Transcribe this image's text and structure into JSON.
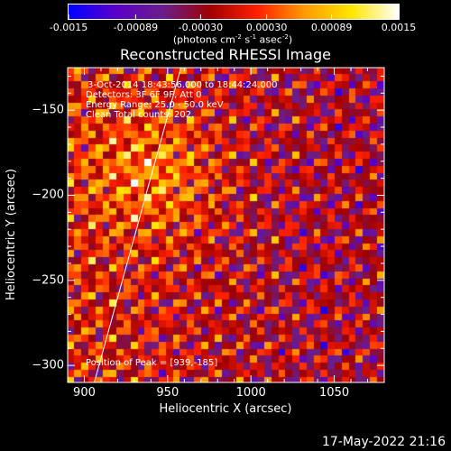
{
  "colorbar": {
    "tick_labels": [
      "-0.0015",
      "-0.00089",
      "-0.00030",
      "0.00030",
      "0.00089",
      "0.0015"
    ],
    "unit_main": "(photons cm",
    "unit_sup1": "-2",
    "unit_mid1": " s",
    "unit_sup2": "-1",
    "unit_mid2": " asec",
    "unit_sup3": "-2",
    "unit_end": ")",
    "range": [
      -0.0015,
      0.0015
    ],
    "colormap": [
      "#0000ff",
      "#5a00c8",
      "#6a1e8c",
      "#a00000",
      "#ff2000",
      "#ff9a00",
      "#ffe600",
      "#ffffff"
    ]
  },
  "annotations": {
    "time": "3-Oct-2014 18:43:56.000 to 18:44:24.000",
    "detectors": "Detectors: 3F 6F 9F, Att 0",
    "energy": "Energy Range: 25.0 - 50.0 keV",
    "clean": "Clean    Total counts: 202.",
    "peak": "Position of Peak = [939,-185]"
  },
  "footer": "17-May-2022 21:16",
  "chart_data": {
    "type": "heatmap",
    "title": "Reconstructed RHESSI Image",
    "xlabel": "Heliocentric X (arcsec)",
    "ylabel": "Heliocentric Y (arcsec)",
    "xlim": [
      890,
      1080
    ],
    "ylim": [
      -310,
      -125
    ],
    "xticks": [
      900,
      950,
      1000,
      1050
    ],
    "yticks": [
      -150,
      -200,
      -250,
      -300
    ],
    "peak": [
      939,
      -185
    ],
    "limb_line": [
      [
        906,
        -310
      ],
      [
        958,
        -125
      ]
    ]
  }
}
